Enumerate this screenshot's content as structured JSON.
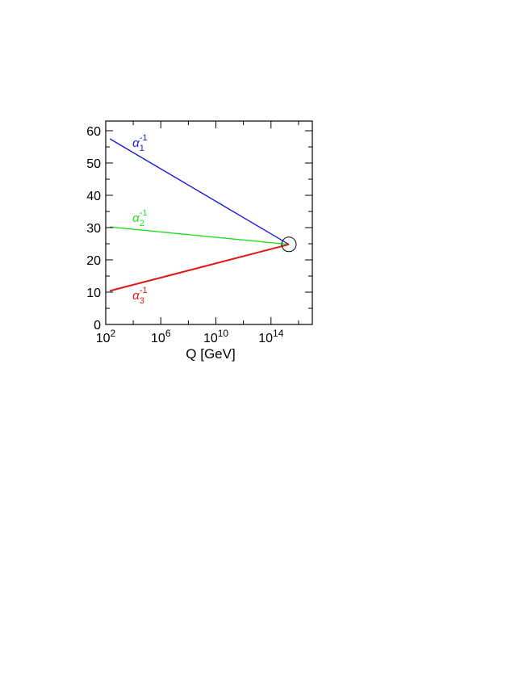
{
  "chart_data": {
    "type": "line",
    "title": "",
    "xlabel": "Q [GeV]",
    "ylabel": "",
    "xscale": "log",
    "xlim": [
      100,
      1e+17
    ],
    "ylim": [
      0,
      63
    ],
    "grid": false,
    "legend": "none",
    "x_ticks": [
      {
        "value": 100,
        "base": "10",
        "exp": "2"
      },
      {
        "value": 1000000,
        "base": "10",
        "exp": "6"
      },
      {
        "value": 10000000000,
        "base": "10",
        "exp": "10"
      },
      {
        "value": 100000000000000,
        "base": "10",
        "exp": "14"
      }
    ],
    "y_ticks": [
      "0",
      "10",
      "20",
      "30",
      "40",
      "50",
      "60"
    ],
    "series": [
      {
        "label_base": "α",
        "label_sub": "1",
        "label_sup": "-1",
        "color": "#1a1adf",
        "x": [
          200,
          2000000000000000.0
        ],
        "y": [
          57.5,
          24.8
        ]
      },
      {
        "label_base": "α",
        "label_sub": "2",
        "label_sup": "-1",
        "color": "#22dd22",
        "x": [
          200,
          2000000000000000.0
        ],
        "y": [
          30.2,
          24.8
        ]
      },
      {
        "label_base": "α",
        "label_sub": "3",
        "label_sup": "-1",
        "color": "#e01818",
        "x": [
          200,
          2000000000000000.0
        ],
        "y": [
          10.4,
          24.8
        ]
      }
    ],
    "annotations": [
      {
        "type": "circle",
        "x": 2000000000000000.0,
        "y": 24.8,
        "meaning": "unification point"
      }
    ]
  }
}
